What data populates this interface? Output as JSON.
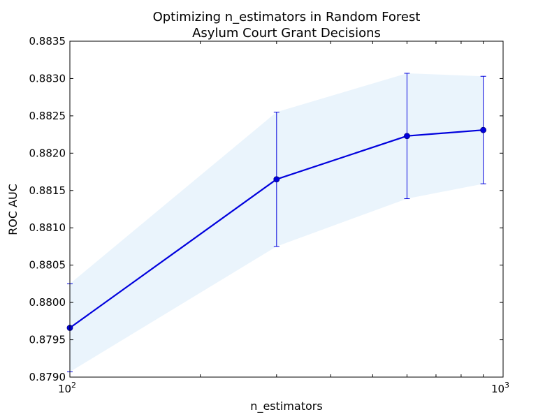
{
  "chart_data": {
    "type": "line",
    "title": "Optimizing n_estimators in Random Forest",
    "subtitle": "Asylum Court Grant Decisions",
    "xlabel": "n_estimators",
    "ylabel": "ROC AUC",
    "xscale": "log",
    "xlim": [
      100,
      1000
    ],
    "ylim": [
      0.879,
      0.8835
    ],
    "x_ticks": [
      {
        "value": 100,
        "base": "10",
        "exp": "2"
      },
      {
        "value": 1000,
        "base": "10",
        "exp": "3"
      }
    ],
    "x_minor_ticks": [
      200,
      300,
      400,
      500,
      600,
      700,
      800,
      900
    ],
    "y_ticks": [
      "0.8790",
      "0.8795",
      "0.8800",
      "0.8805",
      "0.8810",
      "0.8815",
      "0.8820",
      "0.8825",
      "0.8830",
      "0.8835"
    ],
    "grid": false,
    "line_color": "#0000dd",
    "band_color": "#eaf4fc",
    "series": [
      {
        "x": [
          100,
          300,
          600,
          900
        ],
        "y": [
          0.87966,
          0.88165,
          0.88223,
          0.88231
        ],
        "err": [
          0.00059,
          0.0009,
          0.00084,
          0.00072
        ]
      }
    ]
  }
}
